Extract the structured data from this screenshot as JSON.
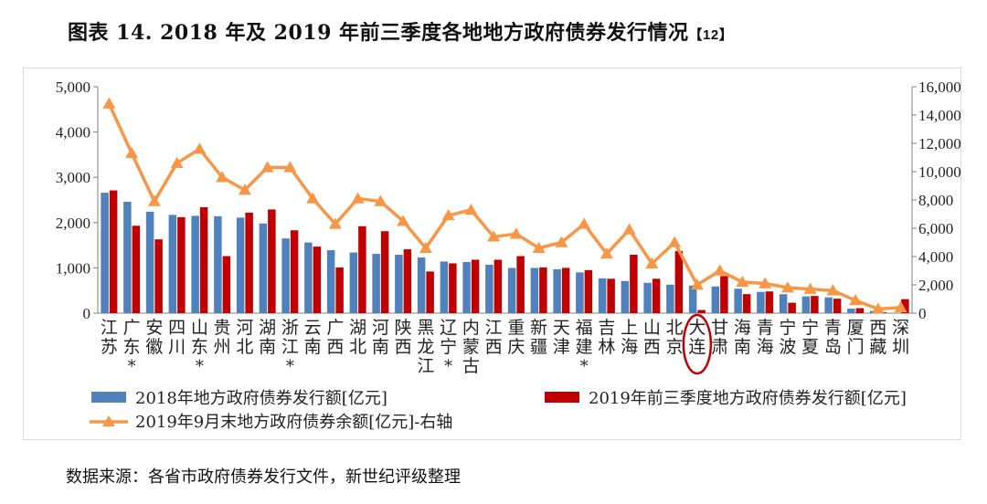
{
  "figure": {
    "title": "图表 14. 2018 年及 2019 年前三季度各地地方政府债券发行情况",
    "ref": "【12】",
    "source": "数据来源：各省市政府债券发行文件，新世纪评级整理"
  },
  "chart_data": {
    "type": "bar+line",
    "title": "图表 14. 2018 年及 2019 年前三季度各地地方政府债券发行情况",
    "categories": [
      "江苏",
      "广东*",
      "安徽",
      "四川",
      "山东*",
      "贵州",
      "河北",
      "湖南",
      "浙江*",
      "云南",
      "广西",
      "湖北",
      "河南",
      "陕西",
      "黑龙江",
      "辽宁*",
      "内蒙古",
      "江西",
      "重庆",
      "新疆",
      "天津",
      "福建*",
      "吉林",
      "上海",
      "山西",
      "北京",
      "大连",
      "甘肃",
      "海南",
      "青海",
      "宁波",
      "宁夏",
      "青岛",
      "厦门",
      "西藏",
      "深圳"
    ],
    "category_lines": [
      [
        "江",
        "苏"
      ],
      [
        "广",
        "东",
        "*"
      ],
      [
        "安",
        "徽"
      ],
      [
        "四",
        "川"
      ],
      [
        "山",
        "东",
        "*"
      ],
      [
        "贵",
        "州"
      ],
      [
        "河",
        "北"
      ],
      [
        "湖",
        "南"
      ],
      [
        "浙",
        "江",
        "*"
      ],
      [
        "云",
        "南"
      ],
      [
        "广",
        "西"
      ],
      [
        "湖",
        "北"
      ],
      [
        "河",
        "南"
      ],
      [
        "陕",
        "西"
      ],
      [
        "黑",
        "龙",
        "江"
      ],
      [
        "辽",
        "宁",
        "*"
      ],
      [
        "内",
        "蒙",
        "古"
      ],
      [
        "江",
        "西"
      ],
      [
        "重",
        "庆"
      ],
      [
        "新",
        "疆"
      ],
      [
        "天",
        "津"
      ],
      [
        "福",
        "建",
        "*"
      ],
      [
        "吉",
        "林"
      ],
      [
        "上",
        "海"
      ],
      [
        "山",
        "西"
      ],
      [
        "北",
        "京"
      ],
      [
        "大",
        "连"
      ],
      [
        "甘",
        "肃"
      ],
      [
        "海",
        "南"
      ],
      [
        "青",
        "海"
      ],
      [
        "宁",
        "波"
      ],
      [
        "宁",
        "夏"
      ],
      [
        "青",
        "岛"
      ],
      [
        "厦",
        "门"
      ],
      [
        "西",
        "藏"
      ],
      [
        "深",
        "圳"
      ]
    ],
    "highlight_category": "大连",
    "series": [
      {
        "name": "2018年地方政府债券发行额[亿元]",
        "type": "bar",
        "axis": "left",
        "color": "#4f81bd",
        "values": [
          2660,
          2460,
          2240,
          2170,
          2150,
          2140,
          2110,
          1980,
          1650,
          1560,
          1390,
          1340,
          1310,
          1290,
          1230,
          1140,
          1130,
          1070,
          1000,
          1000,
          970,
          900,
          770,
          710,
          670,
          630,
          610,
          590,
          540,
          470,
          420,
          370,
          350,
          100,
          50,
          0
        ]
      },
      {
        "name": "2019年前三季度地方政府债券发行额[亿元]",
        "type": "bar",
        "axis": "left",
        "color": "#c00000",
        "values": [
          2710,
          1930,
          1630,
          2120,
          2340,
          1260,
          2220,
          2290,
          1830,
          1470,
          1010,
          1920,
          1810,
          1410,
          920,
          1100,
          1180,
          1180,
          1260,
          1010,
          1000,
          950,
          760,
          1290,
          760,
          1370,
          70,
          820,
          420,
          480,
          230,
          380,
          320,
          110,
          20,
          310
        ]
      },
      {
        "name": "2019年9月末地方政府债券余额[亿元]-右轴",
        "type": "line",
        "axis": "right",
        "color": "#f79646",
        "values": [
          14800,
          11300,
          7900,
          10600,
          11600,
          9600,
          8700,
          10300,
          10300,
          8100,
          6300,
          8100,
          7900,
          6500,
          4600,
          6900,
          7300,
          5400,
          5600,
          4600,
          5000,
          6300,
          4200,
          5900,
          3500,
          5000,
          2000,
          3000,
          2200,
          2100,
          1800,
          1700,
          1600,
          900,
          300,
          400
        ]
      }
    ],
    "left_axis": {
      "min": 0,
      "max": 5000,
      "step": 1000,
      "tick_labels": [
        "0",
        "1,000",
        "2,000",
        "3,000",
        "4,000",
        "5,000"
      ]
    },
    "right_axis": {
      "min": 0,
      "max": 16000,
      "step": 2000,
      "tick_labels": [
        "0",
        "2,000",
        "4,000",
        "6,000",
        "8,000",
        "10,000",
        "12,000",
        "14,000",
        "16,000"
      ]
    },
    "legend_position": "bottom",
    "grid": false
  }
}
